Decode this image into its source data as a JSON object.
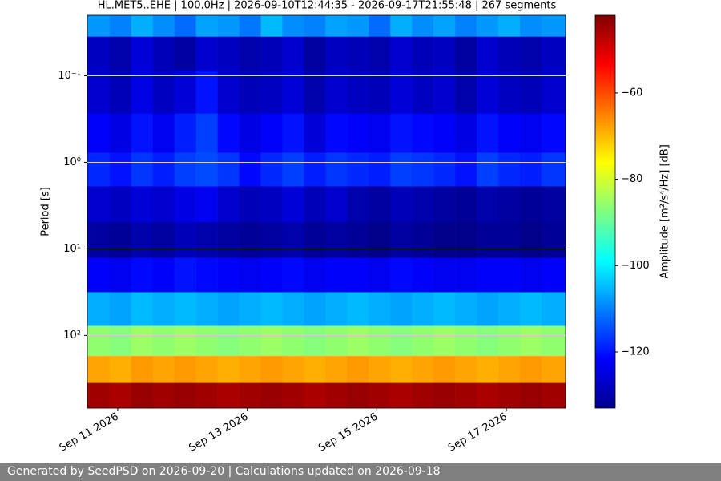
{
  "chart_data": {
    "type": "heatmap",
    "title": "HL.MET5..EHE | 100.0Hz | 2026-09-10T12:44:35 - 2026-09-17T21:55:48 | 267 segments",
    "ylabel": "Period [s]",
    "colorbar_label": "Amplitude [m²/s⁴/Hz] [dB]",
    "colormap": "jet",
    "log_y": true,
    "y_inverted": true,
    "grid": true,
    "x": [
      "2026-09-10T17:00",
      "2026-09-11T01:00",
      "2026-09-11T09:00",
      "2026-09-11T17:00",
      "2026-09-12T01:00",
      "2026-09-12T09:00",
      "2026-09-12T17:00",
      "2026-09-13T01:00",
      "2026-09-13T09:00",
      "2026-09-13T17:00",
      "2026-09-14T01:00",
      "2026-09-14T09:00",
      "2026-09-14T17:00",
      "2026-09-15T01:00",
      "2026-09-15T09:00",
      "2026-09-15T17:00",
      "2026-09-16T01:00",
      "2026-09-16T09:00",
      "2026-09-16T17:00",
      "2026-09-17T01:00",
      "2026-09-17T09:00",
      "2026-09-17T17:00"
    ],
    "y": [
      0.025,
      0.05,
      0.15,
      0.5,
      1.2,
      3,
      8,
      20,
      50,
      120,
      250,
      500
    ],
    "values": [
      [
        -108,
        -110,
        -106,
        -109,
        -112,
        -107,
        -108,
        -111,
        -105,
        -109,
        -110,
        -107,
        -108,
        -112,
        -106,
        -109,
        -107,
        -110,
        -108,
        -106,
        -109,
        -108
      ],
      [
        -127,
        -129,
        -125,
        -128,
        -130,
        -126,
        -127,
        -129,
        -128,
        -126,
        -130,
        -127,
        -128,
        -129,
        -126,
        -128,
        -127,
        -130,
        -126,
        -128,
        -129,
        -127
      ],
      [
        -126,
        -128,
        -124,
        -127,
        -125,
        -120,
        -126,
        -128,
        -127,
        -125,
        -129,
        -126,
        -127,
        -128,
        -125,
        -127,
        -126,
        -129,
        -125,
        -127,
        -128,
        -126
      ],
      [
        -122,
        -124,
        -120,
        -123,
        -119,
        -116,
        -121,
        -124,
        -122,
        -120,
        -125,
        -121,
        -122,
        -123,
        -120,
        -121,
        -122,
        -124,
        -120,
        -122,
        -123,
        -121
      ],
      [
        -118,
        -120,
        -117,
        -119,
        -116,
        -115,
        -117,
        -121,
        -118,
        -116,
        -119,
        -117,
        -118,
        -119,
        -116,
        -117,
        -118,
        -120,
        -116,
        -118,
        -119,
        -117
      ],
      [
        -126,
        -127,
        -125,
        -126,
        -124,
        -123,
        -126,
        -128,
        -127,
        -125,
        -128,
        -126,
        -129,
        -130,
        -128,
        -129,
        -130,
        -131,
        -129,
        -130,
        -131,
        -130
      ],
      [
        -130,
        -131,
        -129,
        -130,
        -128,
        -129,
        -130,
        -131,
        -130,
        -129,
        -131,
        -130,
        -131,
        -132,
        -130,
        -131,
        -132,
        -132,
        -131,
        -131,
        -132,
        -131
      ],
      [
        -122,
        -123,
        -121,
        -122,
        -120,
        -121,
        -122,
        -123,
        -122,
        -121,
        -123,
        -122,
        -122,
        -123,
        -121,
        -122,
        -123,
        -123,
        -122,
        -122,
        -123,
        -122
      ],
      [
        -106,
        -107,
        -105,
        -106,
        -105,
        -106,
        -107,
        -106,
        -105,
        -106,
        -107,
        -106,
        -105,
        -106,
        -107,
        -106,
        -105,
        -106,
        -107,
        -106,
        -105,
        -106
      ],
      [
        -86,
        -87,
        -85,
        -86,
        -85,
        -86,
        -87,
        -86,
        -85,
        -86,
        -87,
        -86,
        -85,
        -86,
        -87,
        -86,
        -85,
        -86,
        -87,
        -86,
        -85,
        -86
      ],
      [
        -68,
        -69,
        -67,
        -68,
        -67,
        -68,
        -69,
        -68,
        -67,
        -68,
        -69,
        -68,
        -67,
        -68,
        -69,
        -68,
        -67,
        -68,
        -69,
        -68,
        -67,
        -68
      ],
      [
        -45,
        -46,
        -44,
        -45,
        -44,
        -45,
        -46,
        -45,
        -44,
        -45,
        -46,
        -45,
        -44,
        -45,
        -46,
        -45,
        -44,
        -45,
        -46,
        -45,
        -44,
        -45
      ]
    ],
    "xlim": [
      "2026-09-10T12:44:35",
      "2026-09-17T21:55:48"
    ],
    "xticks": [
      {
        "value": "2026-09-11",
        "label": "Sep 11 2026"
      },
      {
        "value": "2026-09-13",
        "label": "Sep 13 2026"
      },
      {
        "value": "2026-09-15",
        "label": "Sep 15 2026"
      },
      {
        "value": "2026-09-17",
        "label": "Sep 17 2026"
      }
    ],
    "ylim": [
      0.02,
      690
    ],
    "yticks": [
      {
        "value": 0.1,
        "label": "10⁻¹"
      },
      {
        "value": 1,
        "label": "10⁰"
      },
      {
        "value": 10,
        "label": "10¹"
      },
      {
        "value": 100,
        "label": "10²"
      }
    ],
    "clim": [
      -133,
      -42
    ],
    "cticks": [
      {
        "value": -60,
        "label": "−60"
      },
      {
        "value": -80,
        "label": "−80"
      },
      {
        "value": -100,
        "label": "−100"
      },
      {
        "value": -120,
        "label": "−120"
      }
    ]
  },
  "footer": "Generated by SeedPSD on 2026-09-20 | Calculations updated on 2026-09-18"
}
